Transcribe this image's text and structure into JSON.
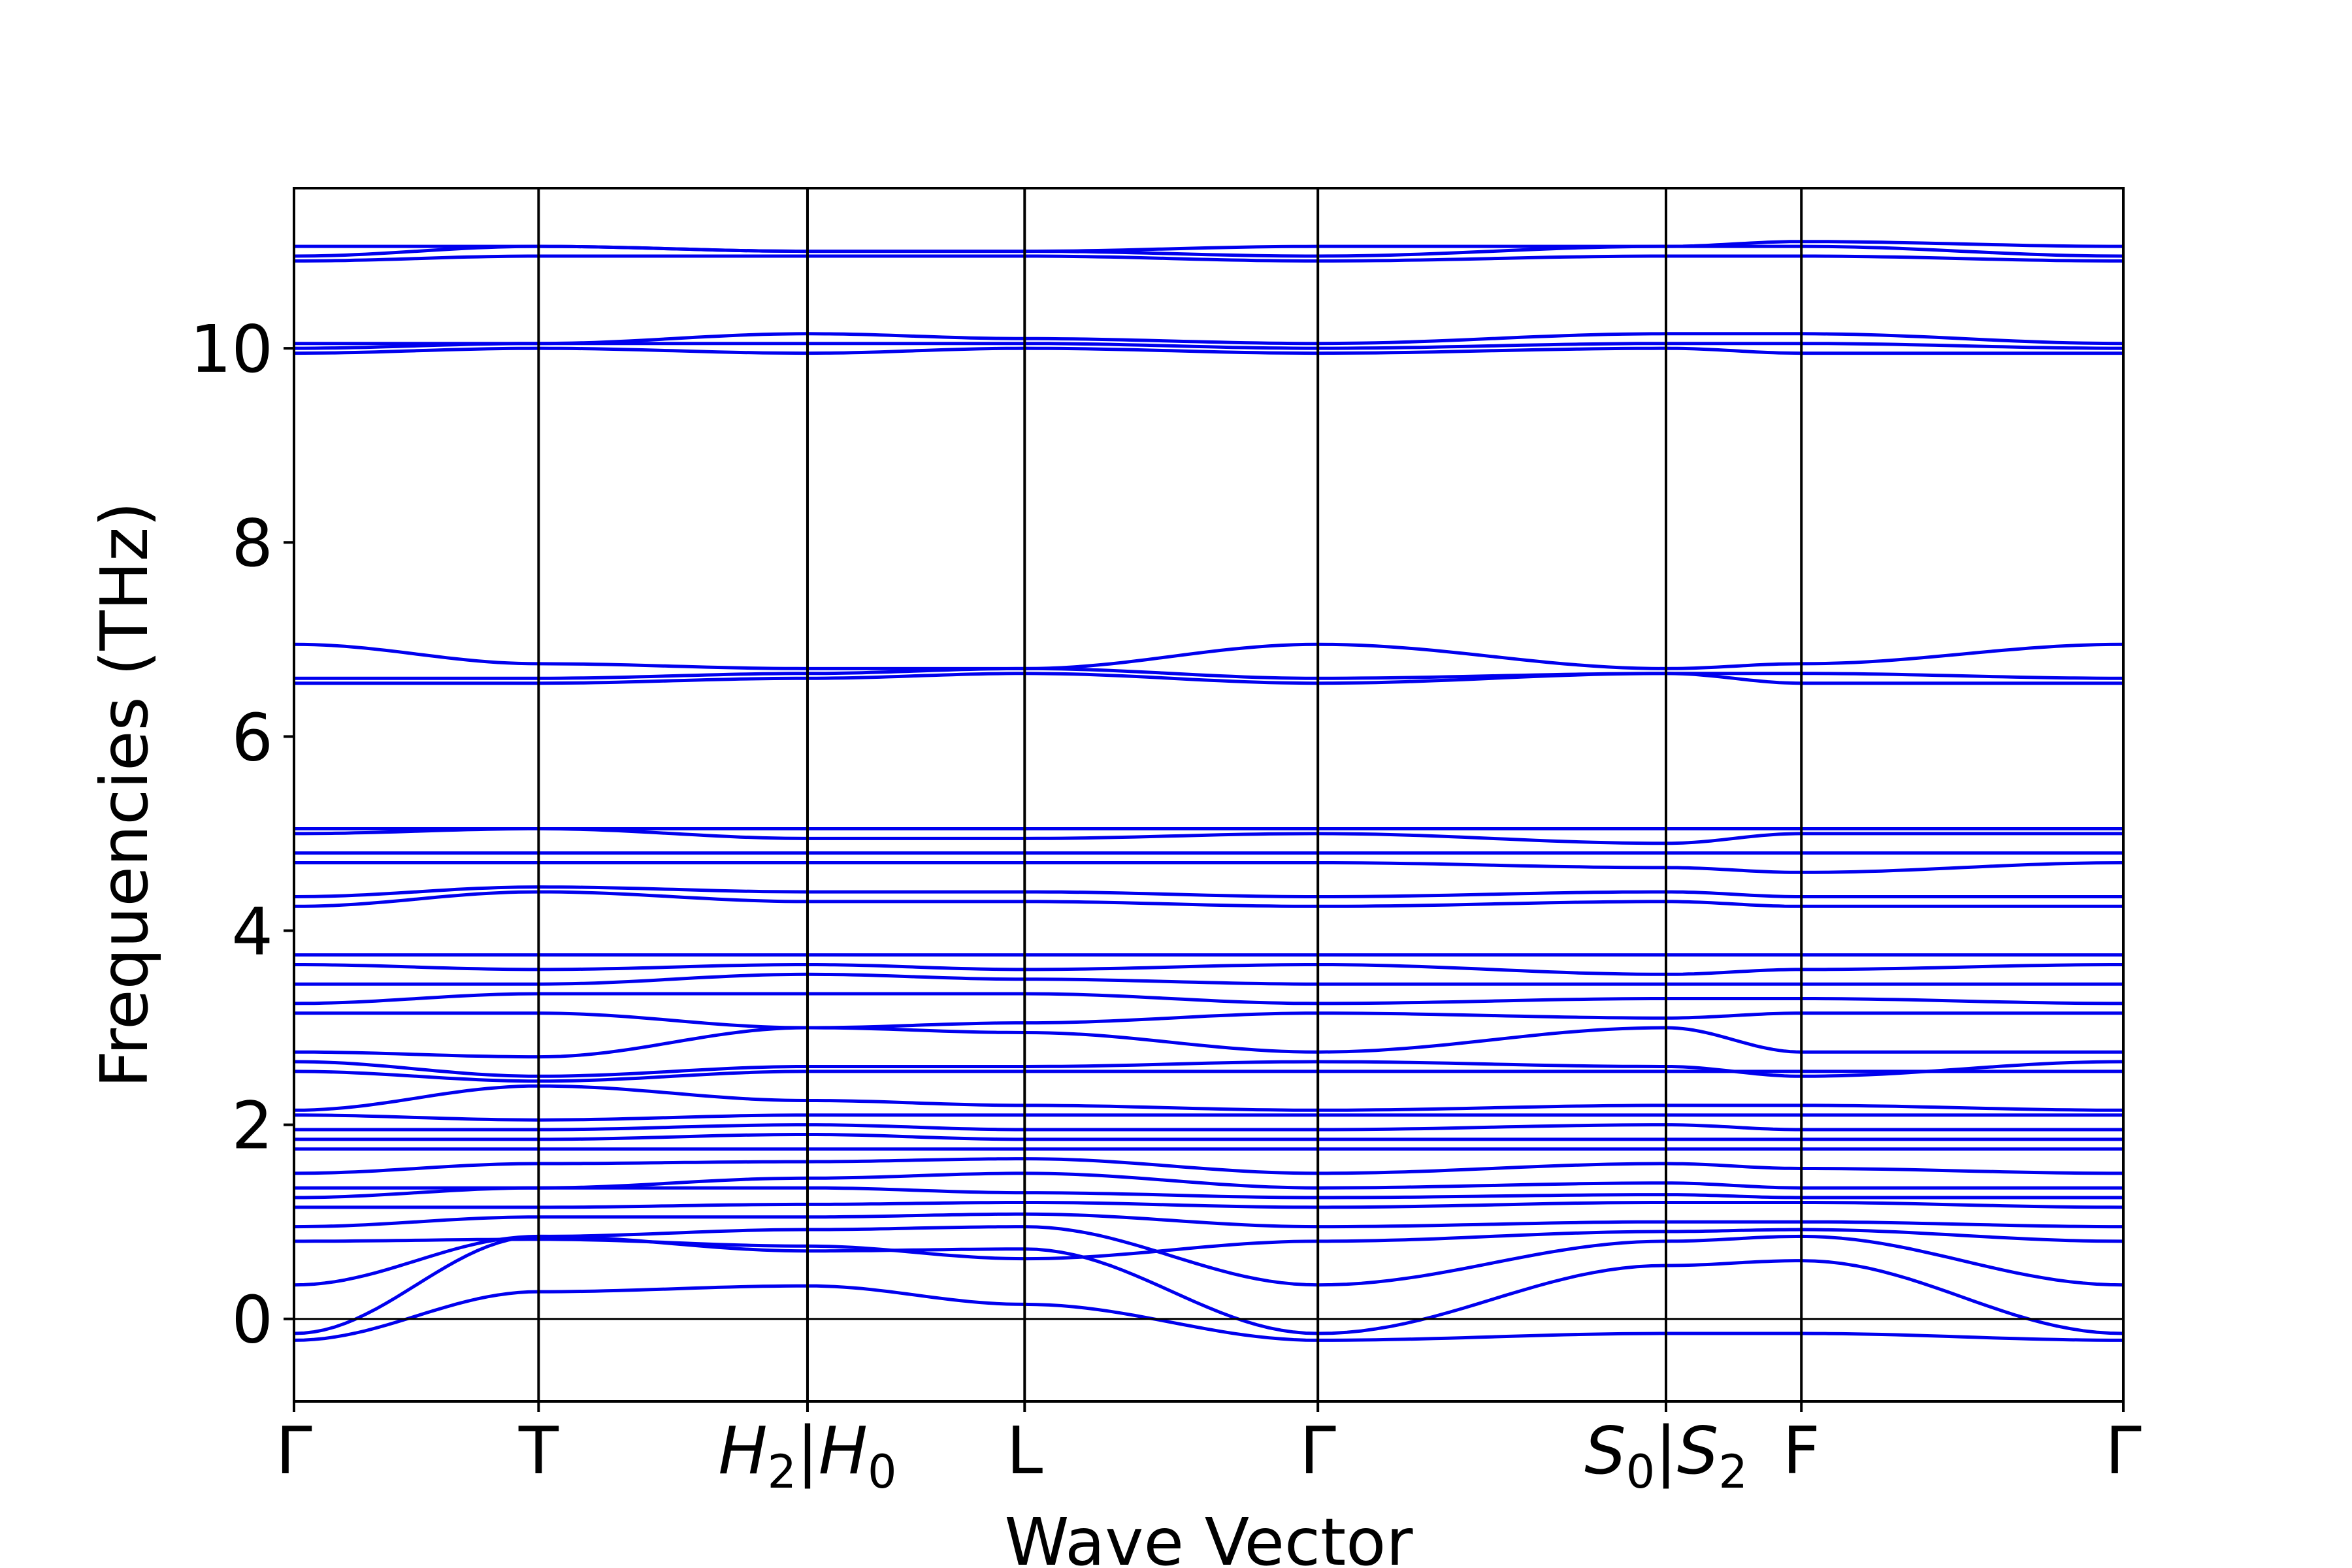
{
  "chart_data": {
    "type": "line",
    "title": "",
    "xlabel": "Wave Vector",
    "ylabel": "Frequencies (THz)",
    "ylim": [
      -0.85,
      11.65
    ],
    "yticks": [
      0,
      2,
      4,
      6,
      8,
      10
    ],
    "x_range": [
      0,
      1
    ],
    "grid": false,
    "legend": "none",
    "line_color": "#0000ee",
    "zero_line": 0,
    "high_symmetry_points": [
      {
        "x": 0.0,
        "label": "Γ"
      },
      {
        "x": 0.1337,
        "label": "T"
      },
      {
        "x": 0.2807,
        "label": "H₂|H₀"
      },
      {
        "x": 0.3994,
        "label": "L"
      },
      {
        "x": 0.5597,
        "label": "Γ"
      },
      {
        "x": 0.75,
        "label": "S₀|S₂"
      },
      {
        "x": 0.824,
        "label": "F"
      },
      {
        "x": 1.0,
        "label": "Γ"
      }
    ],
    "tick_label_parts": [
      {
        "text": "Γ"
      },
      {
        "text": "T"
      },
      {
        "main": "H",
        "sub": "2",
        "sep": "|",
        "main2": "H",
        "sub2": "0"
      },
      {
        "text": "L"
      },
      {
        "text": "Γ"
      },
      {
        "main": "S",
        "sub": "0",
        "sep": "|",
        "main2": "S",
        "sub2": "2"
      },
      {
        "text": "F"
      },
      {
        "text": "Γ"
      }
    ],
    "x": [
      0.0,
      0.1337,
      0.2807,
      0.3994,
      0.5597,
      0.75,
      0.824,
      1.0
    ],
    "series": [
      {
        "values": [
          -0.22,
          0.28,
          0.34,
          0.15,
          -0.22,
          -0.15,
          -0.15,
          -0.22
        ]
      },
      {
        "values": [
          -0.15,
          0.85,
          0.7,
          0.72,
          -0.15,
          0.55,
          0.6,
          -0.15
        ]
      },
      {
        "values": [
          0.35,
          0.85,
          0.92,
          0.95,
          0.35,
          0.8,
          0.85,
          0.35
        ]
      },
      {
        "values": [
          0.8,
          0.82,
          0.75,
          0.62,
          0.8,
          0.9,
          0.92,
          0.8
        ]
      },
      {
        "values": [
          0.95,
          1.05,
          1.05,
          1.08,
          0.95,
          1.0,
          1.0,
          0.95
        ]
      },
      {
        "values": [
          1.15,
          1.15,
          1.18,
          1.2,
          1.15,
          1.2,
          1.2,
          1.15
        ]
      },
      {
        "values": [
          1.25,
          1.35,
          1.35,
          1.3,
          1.25,
          1.28,
          1.25,
          1.25
        ]
      },
      {
        "values": [
          1.35,
          1.35,
          1.45,
          1.5,
          1.35,
          1.4,
          1.35,
          1.35
        ]
      },
      {
        "values": [
          1.5,
          1.6,
          1.62,
          1.65,
          1.5,
          1.6,
          1.55,
          1.5
        ]
      },
      {
        "values": [
          1.75,
          1.75,
          1.75,
          1.75,
          1.75,
          1.75,
          1.75,
          1.75
        ]
      },
      {
        "values": [
          1.85,
          1.85,
          1.9,
          1.85,
          1.85,
          1.85,
          1.85,
          1.85
        ]
      },
      {
        "values": [
          1.95,
          1.95,
          2.0,
          1.95,
          1.95,
          2.0,
          1.95,
          1.95
        ]
      },
      {
        "values": [
          2.1,
          2.05,
          2.1,
          2.1,
          2.1,
          2.1,
          2.1,
          2.1
        ]
      },
      {
        "values": [
          2.15,
          2.4,
          2.25,
          2.2,
          2.15,
          2.2,
          2.2,
          2.15
        ]
      },
      {
        "values": [
          2.55,
          2.45,
          2.55,
          2.55,
          2.55,
          2.55,
          2.55,
          2.55
        ]
      },
      {
        "values": [
          2.65,
          2.5,
          2.6,
          2.6,
          2.65,
          2.6,
          2.5,
          2.65
        ]
      },
      {
        "values": [
          2.75,
          2.7,
          3.0,
          2.95,
          2.75,
          3.0,
          2.75,
          2.75
        ]
      },
      {
        "values": [
          3.15,
          3.15,
          3.0,
          3.05,
          3.15,
          3.1,
          3.15,
          3.15
        ]
      },
      {
        "values": [
          3.25,
          3.35,
          3.35,
          3.35,
          3.25,
          3.3,
          3.3,
          3.25
        ]
      },
      {
        "values": [
          3.45,
          3.45,
          3.55,
          3.5,
          3.45,
          3.45,
          3.45,
          3.45
        ]
      },
      {
        "values": [
          3.65,
          3.6,
          3.65,
          3.6,
          3.65,
          3.55,
          3.6,
          3.65
        ]
      },
      {
        "values": [
          3.75,
          3.75,
          3.75,
          3.75,
          3.75,
          3.75,
          3.75,
          3.75
        ]
      },
      {
        "values": [
          4.25,
          4.4,
          4.3,
          4.3,
          4.25,
          4.3,
          4.25,
          4.25
        ]
      },
      {
        "values": [
          4.35,
          4.45,
          4.4,
          4.4,
          4.35,
          4.4,
          4.35,
          4.35
        ]
      },
      {
        "values": [
          4.7,
          4.7,
          4.7,
          4.7,
          4.7,
          4.65,
          4.6,
          4.7
        ]
      },
      {
        "values": [
          4.8,
          4.8,
          4.8,
          4.8,
          4.8,
          4.8,
          4.8,
          4.8
        ]
      },
      {
        "values": [
          5.0,
          5.05,
          4.95,
          4.95,
          5.0,
          4.9,
          5.0,
          5.0
        ]
      },
      {
        "values": [
          5.05,
          5.05,
          5.05,
          5.05,
          5.05,
          5.05,
          5.05,
          5.05
        ]
      },
      {
        "values": [
          6.55,
          6.55,
          6.6,
          6.65,
          6.55,
          6.65,
          6.55,
          6.55
        ]
      },
      {
        "values": [
          6.6,
          6.6,
          6.65,
          6.7,
          6.6,
          6.65,
          6.65,
          6.6
        ]
      },
      {
        "values": [
          6.95,
          6.75,
          6.7,
          6.7,
          6.95,
          6.7,
          6.75,
          6.95
        ]
      },
      {
        "values": [
          9.95,
          10.0,
          9.95,
          10.0,
          9.95,
          10.0,
          9.95,
          9.95
        ]
      },
      {
        "values": [
          10.0,
          10.05,
          10.05,
          10.05,
          10.0,
          10.05,
          10.05,
          10.0
        ]
      },
      {
        "values": [
          10.05,
          10.05,
          10.15,
          10.1,
          10.05,
          10.15,
          10.15,
          10.05
        ]
      },
      {
        "values": [
          10.9,
          10.95,
          10.95,
          10.95,
          10.9,
          10.95,
          10.95,
          10.9
        ]
      },
      {
        "values": [
          10.95,
          11.05,
          11.0,
          11.0,
          10.95,
          11.05,
          11.05,
          10.95
        ]
      },
      {
        "values": [
          11.05,
          11.05,
          11.0,
          11.0,
          11.05,
          11.05,
          11.1,
          11.05
        ]
      }
    ]
  }
}
